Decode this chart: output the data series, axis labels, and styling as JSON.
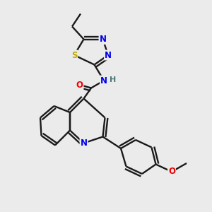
{
  "background_color": "#ebebeb",
  "bond_color": "#1a1a1a",
  "atom_colors": {
    "N": "#0000ee",
    "O": "#ee0000",
    "S": "#bbaa00",
    "H": "#4a7a7a",
    "C": "#1a1a1a"
  },
  "figsize": [
    3.0,
    3.0
  ],
  "dpi": 100
}
